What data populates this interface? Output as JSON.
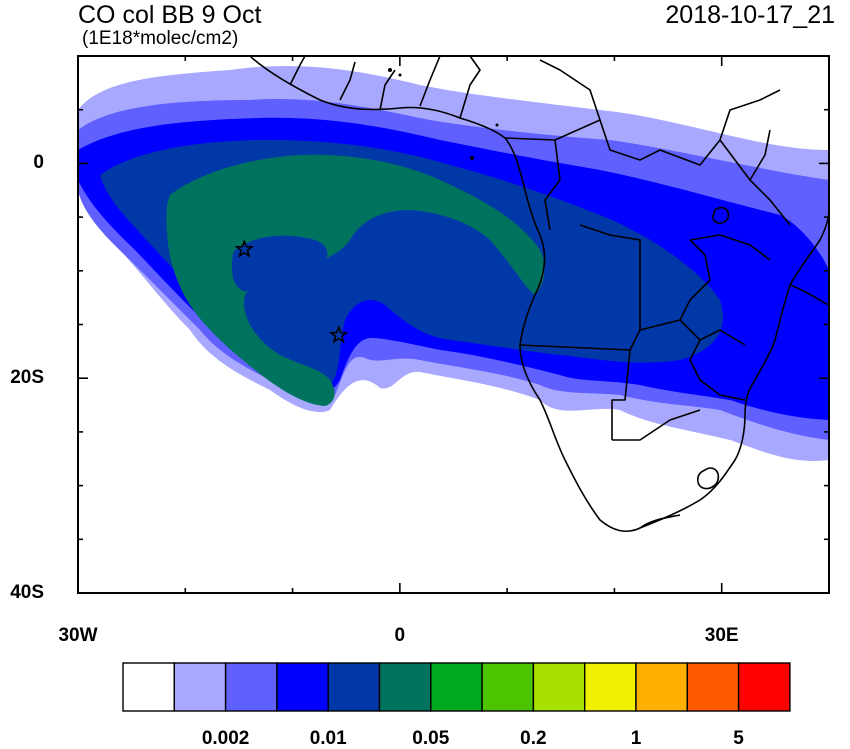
{
  "header": {
    "title": "CO col BB 9 Oct",
    "units": "(1E18*molec/cm2)",
    "timestamp": "2018-10-17_21"
  },
  "axes": {
    "lon_labels": [
      "30W",
      "0",
      "30E"
    ],
    "lat_labels": [
      "0",
      "20S",
      "40S"
    ],
    "lon_range": [
      -30,
      40
    ],
    "lat_range": [
      -40,
      10
    ]
  },
  "markers": [
    {
      "name": "star-marker-1",
      "lon": -14.5,
      "lat": -8
    },
    {
      "name": "star-marker-2",
      "lon": -5.7,
      "lat": -16
    }
  ],
  "colorbar": {
    "colors": [
      "#ffffff",
      "#a8a8ff",
      "#6060ff",
      "#0000ff",
      "#0038a8",
      "#00735f",
      "#00a81e",
      "#4cc400",
      "#a8e000",
      "#f0f000",
      "#ffb000",
      "#ff5a00",
      "#ff0000"
    ],
    "labels": [
      {
        "text": "0.002",
        "boundary": 2
      },
      {
        "text": "0.01",
        "boundary": 4
      },
      {
        "text": "0.05",
        "boundary": 6
      },
      {
        "text": "0.2",
        "boundary": 8
      },
      {
        "text": "1",
        "boundary": 10
      },
      {
        "text": "5",
        "boundary": 12
      }
    ]
  }
}
